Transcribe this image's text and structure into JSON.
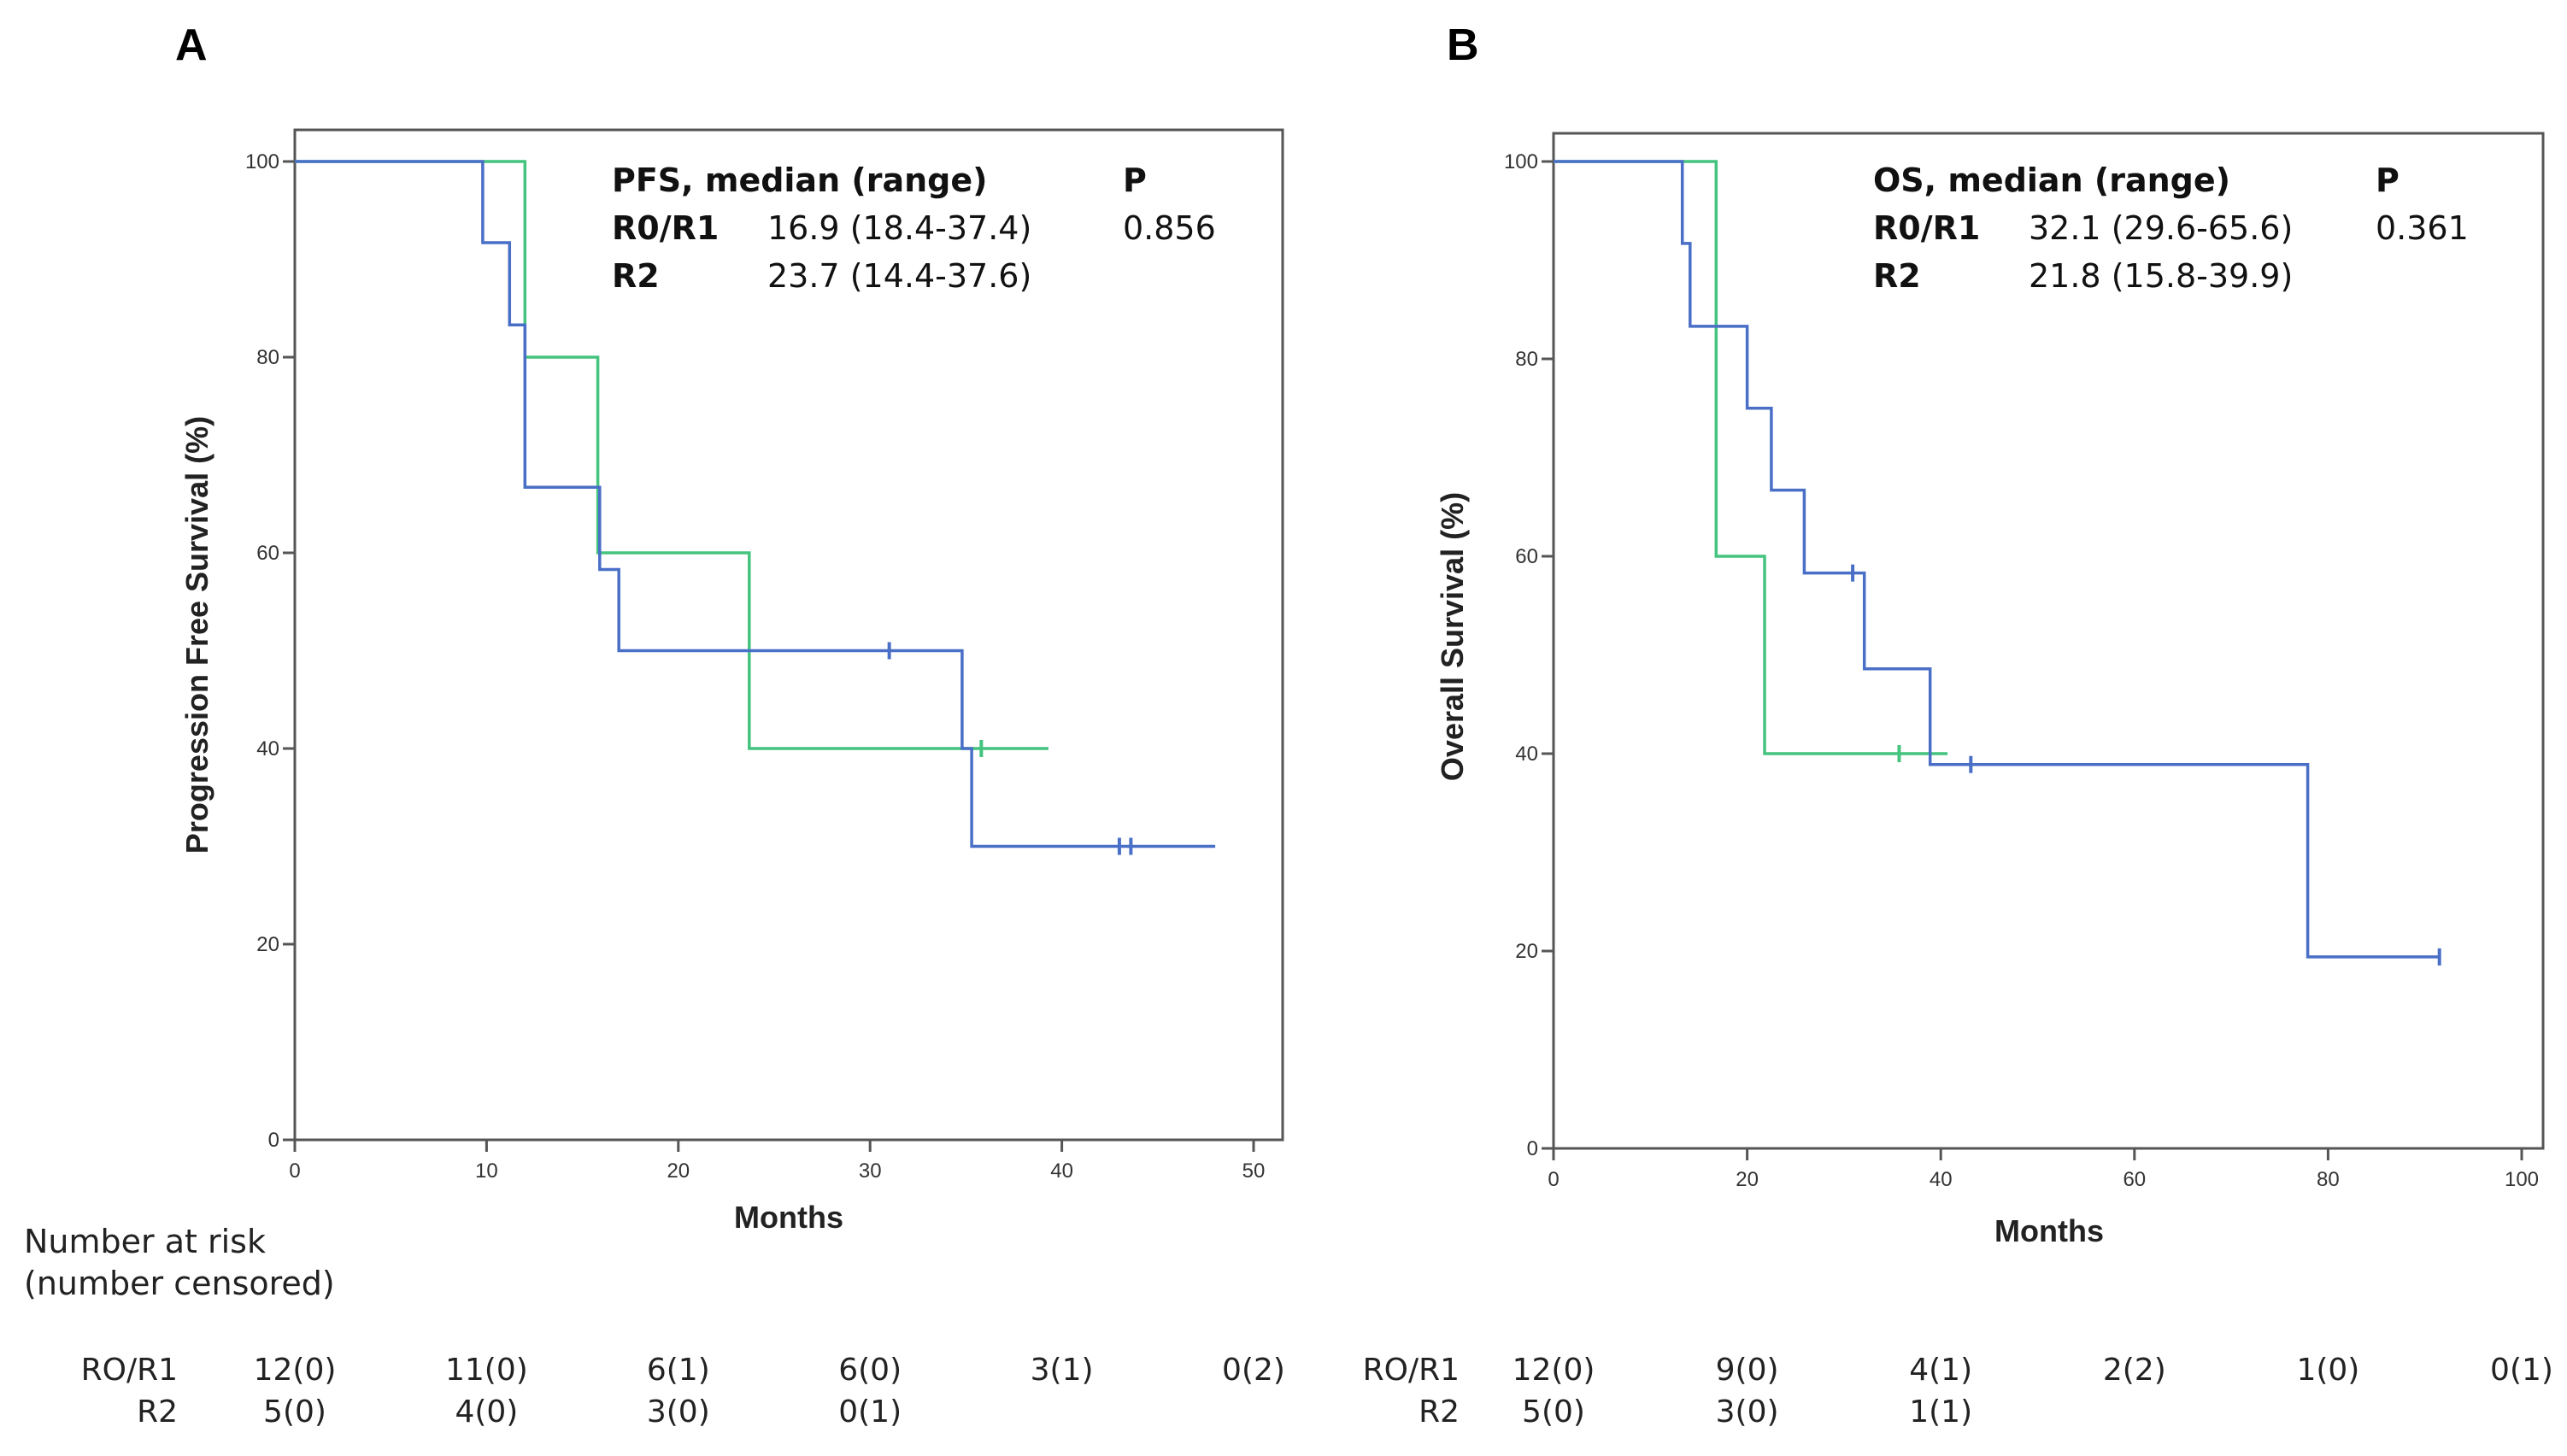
{
  "chart_data": [
    {
      "panel": "A",
      "type": "line",
      "style": "step (Kaplan-Meier)",
      "xlabel": "Months",
      "ylabel": "Progression Free Survival (%)",
      "xlim": [
        0,
        50
      ],
      "ylim": [
        0,
        100
      ],
      "xticks": [
        0,
        10,
        20,
        30,
        40,
        50
      ],
      "yticks": [
        0,
        20,
        40,
        60,
        80,
        100
      ],
      "series": [
        {
          "name": "R0/R1",
          "color": "#4a6fc7",
          "x": [
            0,
            9.8,
            9.8,
            11.2,
            11.2,
            12.0,
            12.0,
            15.9,
            15.9,
            16.3,
            16.3,
            16.9,
            16.9,
            34.8,
            34.8,
            35.3,
            35.3,
            48.0
          ],
          "y": [
            100,
            100,
            91.7,
            91.7,
            83.3,
            83.3,
            66.7,
            66.7,
            58.3,
            58.3,
            58.3,
            58.3,
            50,
            50,
            40,
            40,
            30,
            30
          ],
          "censored": [
            {
              "x": 31.0,
              "y": 50
            },
            {
              "x": 43.0,
              "y": 30
            },
            {
              "x": 43.6,
              "y": 30
            }
          ]
        },
        {
          "name": "R2",
          "color": "#44c47e",
          "x": [
            0,
            12.0,
            12.0,
            15.8,
            15.8,
            23.7,
            23.7,
            39.3
          ],
          "y": [
            100,
            100,
            80,
            80,
            60,
            60,
            40,
            40
          ],
          "censored": [
            {
              "x": 35.8,
              "y": 40
            }
          ]
        }
      ],
      "legend": {
        "title": "PFS, median (range)",
        "p_header": "P",
        "rows": [
          {
            "group": "R0/R1",
            "value": "16.9 (18.4-37.4)",
            "p": "0.856"
          },
          {
            "group": "R2",
            "value": "23.7 (14.4-37.6)",
            "p": ""
          }
        ]
      },
      "risk_table": {
        "header_line1": "Number at risk",
        "header_line2": "(number censored)",
        "rows": [
          {
            "label": "RO/R1",
            "values": [
              "12(0)",
              "11(0)",
              "6(1)",
              "6(0)",
              "3(1)",
              "0(2)"
            ]
          },
          {
            "label": "R2",
            "values": [
              "5(0)",
              "4(0)",
              "3(0)",
              "0(1)"
            ]
          }
        ]
      }
    },
    {
      "panel": "B",
      "type": "line",
      "style": "step (Kaplan-Meier)",
      "xlabel": "Months",
      "ylabel": "Overall Survival (%)",
      "xlim": [
        0,
        100
      ],
      "ylim": [
        0,
        100
      ],
      "xticks": [
        0,
        20,
        40,
        60,
        80,
        100
      ],
      "yticks": [
        0,
        20,
        40,
        60,
        80,
        100
      ],
      "series": [
        {
          "name": "R0/R1",
          "color": "#4a6fc7",
          "x": [
            0,
            13.3,
            13.3,
            14.1,
            14.1,
            20.0,
            20.0,
            22.5,
            22.5,
            25.9,
            25.9,
            32.1,
            32.1,
            38.9,
            38.9,
            77.9,
            77.9,
            91.5
          ],
          "y": [
            100,
            100,
            91.7,
            91.7,
            83.3,
            83.3,
            75,
            75,
            66.7,
            66.7,
            58.3,
            58.3,
            48.6,
            48.6,
            38.9,
            38.9,
            19.4,
            19.4
          ],
          "censored": [
            {
              "x": 30.9,
              "y": 58.3
            },
            {
              "x": 43.1,
              "y": 38.9
            },
            {
              "x": 91.5,
              "y": 19.4
            }
          ]
        },
        {
          "name": "R2",
          "color": "#44c47e",
          "x": [
            0,
            16.8,
            16.8,
            21.8,
            21.8,
            40.7
          ],
          "y": [
            100,
            100,
            60,
            60,
            40,
            40
          ],
          "censored": [
            {
              "x": 35.7,
              "y": 40
            }
          ]
        }
      ],
      "legend": {
        "title": "OS, median (range)",
        "p_header": "P",
        "rows": [
          {
            "group": "R0/R1",
            "value": "32.1 (29.6-65.6)",
            "p": "0.361"
          },
          {
            "group": "R2",
            "value": "21.8 (15.8-39.9)",
            "p": ""
          }
        ]
      },
      "risk_table": {
        "rows": [
          {
            "label": "RO/R1",
            "values": [
              "12(0)",
              "9(0)",
              "4(1)",
              "2(2)",
              "1(0)",
              "0(1)"
            ]
          },
          {
            "label": "R2",
            "values": [
              "5(0)",
              "3(0)",
              "1(1)"
            ]
          }
        ]
      }
    }
  ]
}
